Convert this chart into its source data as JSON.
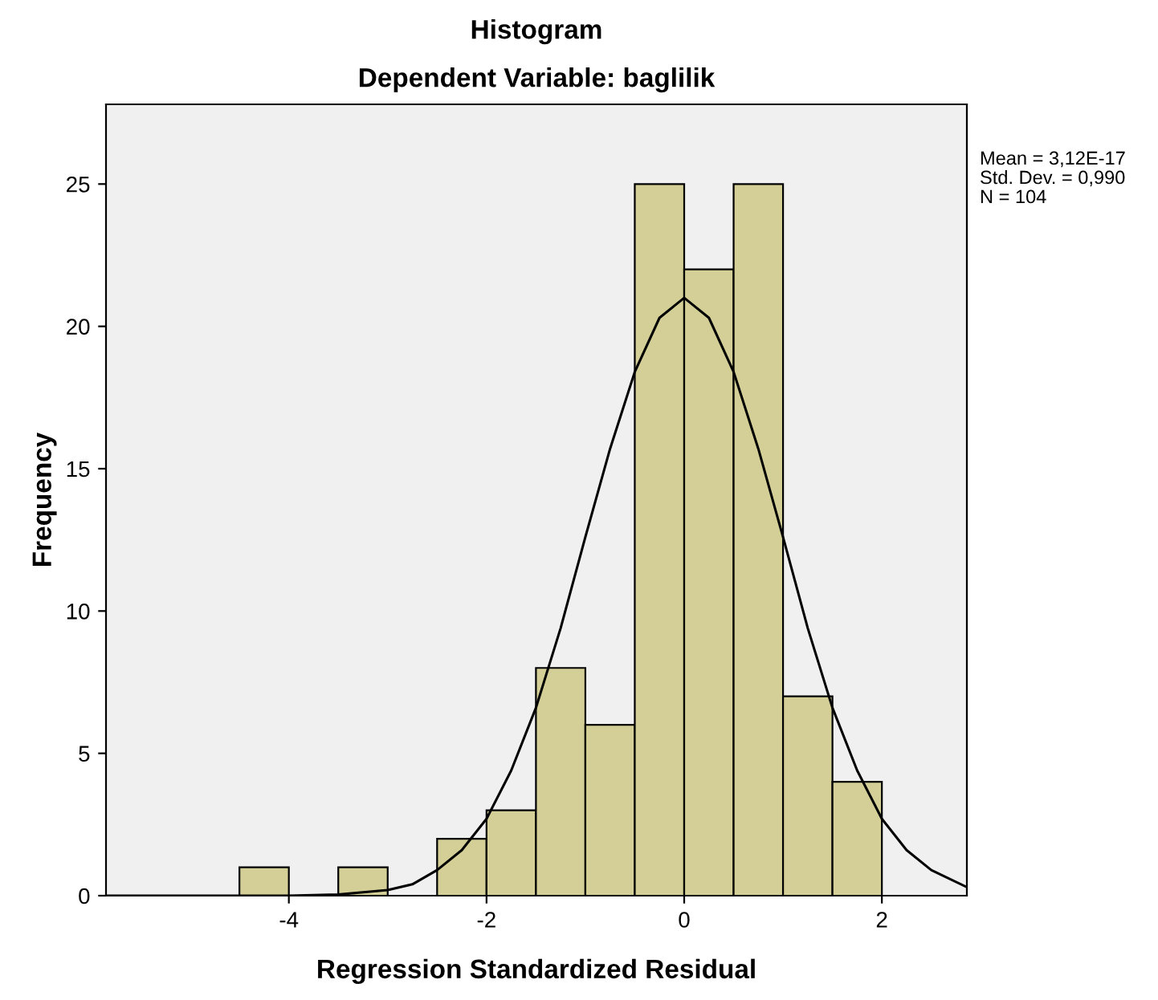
{
  "chart_data": {
    "type": "histogram",
    "title": "Histogram",
    "subtitle": "Dependent Variable: baglilik",
    "xlabel": "Regression Standardized Residual",
    "ylabel": "Frequency",
    "series": [
      {
        "color": "#d4cf97",
        "bins": [
          -4.5,
          -4.0,
          -3.5,
          -3.0,
          -2.5,
          -2.0,
          -1.5,
          -1.0,
          -0.5,
          0.0,
          0.5,
          1.0,
          1.5,
          2.0
        ],
        "values": [
          1,
          0,
          1,
          0,
          2,
          3,
          8,
          6,
          25,
          22,
          25,
          7,
          4
        ]
      },
      {
        "type": "line",
        "color": "#000000",
        "x": [
          -5.85,
          -4.0,
          -3.5,
          -3.0,
          -2.75,
          -2.5,
          -2.25,
          -2.0,
          -1.75,
          -1.5,
          -1.25,
          -1.0,
          -0.75,
          -0.5,
          -0.25,
          0.0,
          0.25,
          0.5,
          0.75,
          1.0,
          1.25,
          1.5,
          1.75,
          2.0,
          2.25,
          2.5,
          2.86
        ],
        "values": [
          0,
          0,
          0.04,
          0.2,
          0.4,
          0.9,
          1.6,
          2.7,
          4.4,
          6.6,
          9.4,
          12.6,
          15.7,
          18.4,
          20.3,
          21.0,
          20.3,
          18.4,
          15.7,
          12.6,
          9.4,
          6.6,
          4.4,
          2.7,
          1.6,
          0.9,
          0.3
        ]
      }
    ],
    "xlim": [
      -5.85,
      2.86
    ],
    "ylim": [
      0,
      27.8
    ],
    "xticks": [
      -4,
      -2,
      0,
      2
    ],
    "yticks": [
      0,
      5,
      10,
      15,
      20,
      25
    ],
    "grid": false,
    "legend": false,
    "annotations": [
      "Mean = 3,12E-17",
      "Std. Dev. = 0,990",
      "N = 104"
    ]
  }
}
